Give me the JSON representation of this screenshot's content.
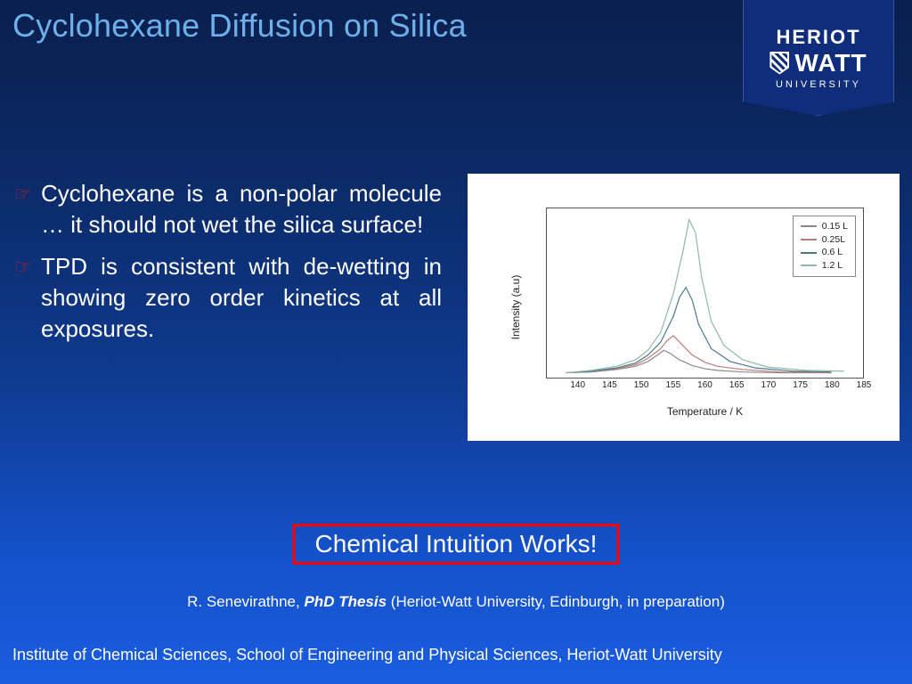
{
  "title": "Cyclohexane Diffusion on Silica",
  "logo": {
    "line1": "HERIOT",
    "line2": "WATT",
    "line3": "UNIVERSITY"
  },
  "bullets": [
    "Cyclohexane is a non-polar molecule … it should not wet the silica surface!",
    "TPD is consistent with de-wetting in showing zero order kinetics at all exposures."
  ],
  "callout": "Chemical Intuition Works!",
  "citation": {
    "author": "R. Senevirathne, ",
    "thesis": "PhD Thesis",
    "rest": " (Heriot-Watt University, Edinburgh, in preparation)"
  },
  "footer": "Institute of Chemical Sciences, School of Engineering and Physical Sciences, Heriot-Watt University",
  "chart": {
    "type": "line",
    "background_color": "#ffffff",
    "axis_color": "#555555",
    "text_color": "#222222",
    "label_fontsize": 12,
    "tick_fontsize": 10,
    "xlabel": "Temperature / K",
    "ylabel": "Intensity (a.u)",
    "xlim": [
      135,
      185
    ],
    "ylim": [
      0,
      1.05
    ],
    "xticks": [
      140,
      145,
      150,
      155,
      160,
      165,
      170,
      175,
      180,
      185
    ],
    "series": [
      {
        "label": "0.15 L",
        "color": "#8a8a8a",
        "line_width": 1.2,
        "x": [
          138,
          142,
          146,
          149,
          151,
          152.5,
          153.5,
          154.5,
          156,
          158,
          160,
          162,
          166,
          172,
          180
        ],
        "y": [
          0.03,
          0.035,
          0.05,
          0.07,
          0.1,
          0.14,
          0.17,
          0.15,
          0.11,
          0.075,
          0.055,
          0.045,
          0.035,
          0.03,
          0.03
        ]
      },
      {
        "label": "0.25L",
        "color": "#c07a7a",
        "line_width": 1.2,
        "x": [
          138,
          142,
          146,
          149,
          151,
          153,
          154,
          155,
          156,
          158,
          160,
          162,
          166,
          172,
          180
        ],
        "y": [
          0.03,
          0.04,
          0.055,
          0.08,
          0.12,
          0.18,
          0.23,
          0.26,
          0.22,
          0.14,
          0.095,
          0.07,
          0.05,
          0.035,
          0.03
        ]
      },
      {
        "label": "0.6 L",
        "color": "#4a7a8a",
        "line_width": 1.2,
        "x": [
          138,
          142,
          146,
          149,
          151,
          153,
          155,
          156,
          157,
          158,
          159,
          161,
          164,
          168,
          174,
          180
        ],
        "y": [
          0.03,
          0.04,
          0.06,
          0.09,
          0.14,
          0.22,
          0.38,
          0.5,
          0.56,
          0.48,
          0.33,
          0.18,
          0.1,
          0.06,
          0.04,
          0.035
        ]
      },
      {
        "label": "1.2 L",
        "color": "#8fb9a8",
        "line_width": 1.2,
        "x": [
          138,
          142,
          146,
          149,
          151,
          153,
          155,
          156.5,
          157.5,
          158.5,
          159.5,
          161,
          163,
          166,
          170,
          176,
          182
        ],
        "y": [
          0.03,
          0.045,
          0.07,
          0.11,
          0.17,
          0.28,
          0.52,
          0.78,
          0.98,
          0.9,
          0.62,
          0.35,
          0.2,
          0.11,
          0.065,
          0.045,
          0.04
        ]
      }
    ]
  },
  "colors": {
    "title_color": "#6eb0ec",
    "callout_border": "#ff0000",
    "bullet_icon": "#c02020",
    "bg_top": "#0a1f4d",
    "bg_bottom": "#1a5de0",
    "banner_bg": "#0f2d7a"
  }
}
